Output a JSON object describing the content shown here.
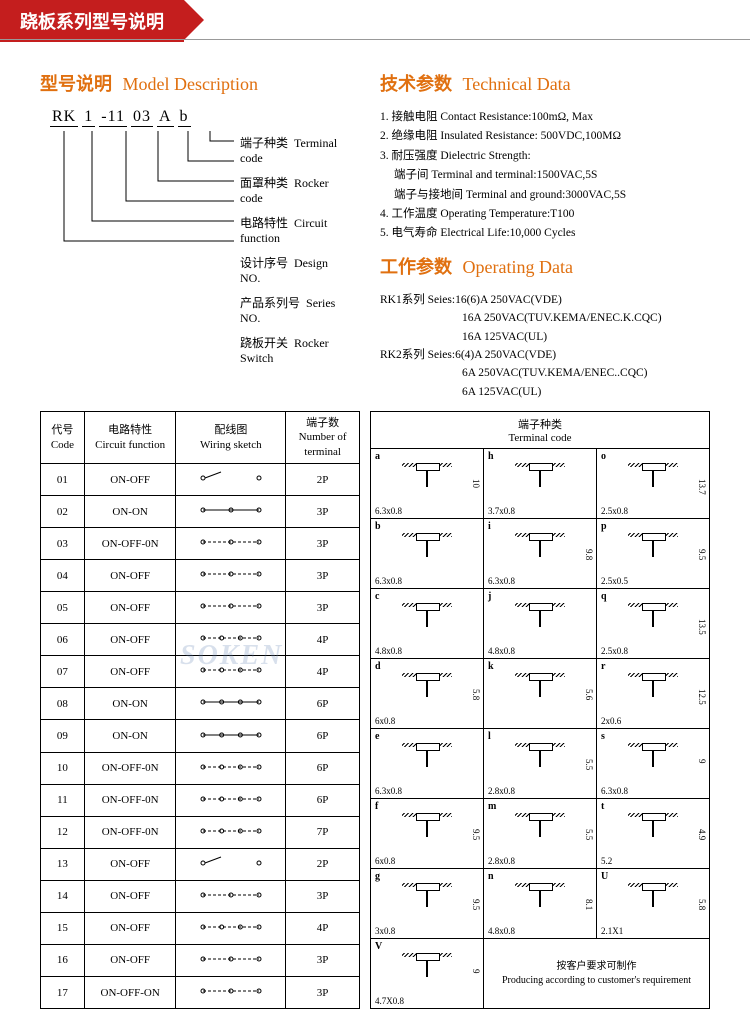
{
  "header": {
    "title": "跷板系列型号说明"
  },
  "model": {
    "title_cn": "型号说明",
    "title_en": "Model Description",
    "parts": [
      "RK",
      "1",
      "-11",
      "03",
      "A",
      "b"
    ],
    "labels": [
      {
        "cn": "端子种类",
        "en": "Terminal code"
      },
      {
        "cn": "面罩种类",
        "en": "Rocker code"
      },
      {
        "cn": "电路特性",
        "en": "Circuit function"
      },
      {
        "cn": "设计序号",
        "en": "Design NO."
      },
      {
        "cn": "产品系列号",
        "en": "Series NO."
      },
      {
        "cn": "跷板开关",
        "en": "Rocker Switch"
      }
    ]
  },
  "tech": {
    "title_cn": "技术参数",
    "title_en": "Technical Data",
    "items": [
      "1. 接触电阻 Contact Resistance:100mΩ, Max",
      "2. 绝缘电阻 Insulated Resistance: 500VDC,100MΩ",
      "3. 耐压强度 Dielectric Strength:",
      "端子间 Terminal and terminal:1500VAC,5S",
      "端子与接地间 Terminal and ground:3000VAC,5S",
      "4. 工作温度 Operating Temperature:T100",
      "5. 电气寿命 Electrical Life:10,000 Cycles"
    ]
  },
  "operating": {
    "title_cn": "工作参数",
    "title_en": "Operating Data",
    "lines": [
      "RK1系列 Seies:16(6)A 250VAC(VDE)",
      "16A 250VAC(TUV.KEMA/ENEC.K.CQC)",
      "16A 125VAC(UL)",
      "RK2系列 Seies:6(4)A 250VAC(VDE)",
      "6A 250VAC(TUV.KEMA/ENEC..CQC)",
      "6A 125VAC(UL)"
    ]
  },
  "circuit_table": {
    "headers": {
      "code_cn": "代号",
      "code_en": "Code",
      "func_cn": "电路特性",
      "func_en": "Circuit function",
      "sketch_cn": "配线图",
      "sketch_en": "Wiring sketch",
      "term_cn": "端子数",
      "term_en": "Number of terminal"
    },
    "rows": [
      {
        "code": "01",
        "func": "ON-OFF",
        "term": "2P"
      },
      {
        "code": "02",
        "func": "ON-ON",
        "term": "3P"
      },
      {
        "code": "03",
        "func": "ON-OFF-0N",
        "term": "3P"
      },
      {
        "code": "04",
        "func": "ON-OFF",
        "term": "3P"
      },
      {
        "code": "05",
        "func": "ON-OFF",
        "term": "3P"
      },
      {
        "code": "06",
        "func": "ON-OFF",
        "term": "4P"
      },
      {
        "code": "07",
        "func": "ON-OFF",
        "term": "4P"
      },
      {
        "code": "08",
        "func": "ON-ON",
        "term": "6P"
      },
      {
        "code": "09",
        "func": "ON-ON",
        "term": "6P"
      },
      {
        "code": "10",
        "func": "ON-OFF-0N",
        "term": "6P"
      },
      {
        "code": "11",
        "func": "ON-OFF-0N",
        "term": "6P"
      },
      {
        "code": "12",
        "func": "ON-OFF-0N",
        "term": "7P"
      },
      {
        "code": "13",
        "func": "ON-OFF",
        "term": "2P"
      },
      {
        "code": "14",
        "func": "ON-OFF",
        "term": "3P"
      },
      {
        "code": "15",
        "func": "ON-OFF",
        "term": "4P"
      },
      {
        "code": "16",
        "func": "ON-OFF",
        "term": "3P"
      },
      {
        "code": "17",
        "func": "ON-OFF-ON",
        "term": "3P"
      }
    ]
  },
  "terminal_table": {
    "header_cn": "端子种类",
    "header_en": "Terminal code",
    "cells": [
      [
        {
          "c": "a",
          "d": "6.3x0.8",
          "r": "10"
        },
        {
          "c": "h",
          "d": "3.7x0.8",
          "r": ""
        },
        {
          "c": "o",
          "d": "2.5x0.8",
          "r": "13.7"
        }
      ],
      [
        {
          "c": "b",
          "d": "6.3x0.8",
          "r": ""
        },
        {
          "c": "i",
          "d": "6.3x0.8",
          "r": "9.8"
        },
        {
          "c": "p",
          "d": "2.5x0.5",
          "r": "9.5"
        }
      ],
      [
        {
          "c": "c",
          "d": "4.8x0.8",
          "r": ""
        },
        {
          "c": "j",
          "d": "4.8x0.8",
          "r": ""
        },
        {
          "c": "q",
          "d": "2.5x0.8",
          "r": "13.5"
        }
      ],
      [
        {
          "c": "d",
          "d": "6x0.8",
          "r": "5.8"
        },
        {
          "c": "k",
          "d": "",
          "r": "5.6"
        },
        {
          "c": "r",
          "d": "2x0.6",
          "r": "12.5"
        }
      ],
      [
        {
          "c": "e",
          "d": "6.3x0.8",
          "r": ""
        },
        {
          "c": "l",
          "d": "2.8x0.8",
          "r": "5.5"
        },
        {
          "c": "s",
          "d": "6.3x0.8",
          "r": "9"
        }
      ],
      [
        {
          "c": "f",
          "d": "6x0.8",
          "r": "9.5"
        },
        {
          "c": "m",
          "d": "2.8x0.8",
          "r": "5.5"
        },
        {
          "c": "t",
          "d": "5.2",
          "r": "4.9"
        }
      ],
      [
        {
          "c": "g",
          "d": "3x0.8",
          "r": "9.5"
        },
        {
          "c": "n",
          "d": "4.8x0.8",
          "r": "8.1"
        },
        {
          "c": "U",
          "d": "2.1X1",
          "r": "5.8"
        }
      ]
    ],
    "last_row": {
      "c": "V",
      "d": "4.7X0.8",
      "r": "9"
    },
    "note_cn": "按客户要求可制作",
    "note_en": "Producing according to customer's requirement"
  },
  "watermark": "SOKEN",
  "colors": {
    "accent": "#e07010",
    "red": "#c41e1e"
  }
}
